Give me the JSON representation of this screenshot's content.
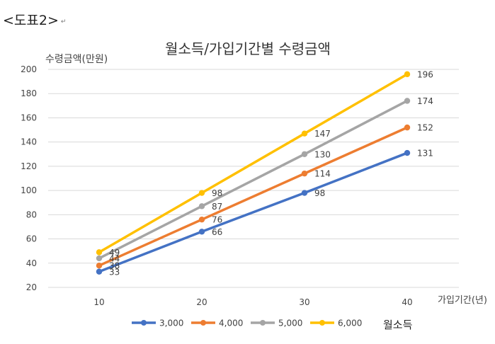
{
  "caption": "<도표2>",
  "caption_mark": "↵",
  "chart_data": {
    "type": "line",
    "title": "월소득/가입기간별 수령금액",
    "ylabel": "수령금액(만원)",
    "xlabel": "가입기간(년)",
    "legend_title": "월소득",
    "x": [
      10,
      20,
      30,
      40
    ],
    "ylim": [
      20,
      200
    ],
    "yticks": [
      20,
      40,
      60,
      80,
      100,
      120,
      140,
      160,
      180,
      200
    ],
    "grid": true,
    "legend": "bottom",
    "series": [
      {
        "name": "3,000",
        "color": "#4472C4",
        "values": [
          33,
          66,
          98,
          131
        ]
      },
      {
        "name": "4,000",
        "color": "#ED7D31",
        "values": [
          38,
          76,
          114,
          152
        ]
      },
      {
        "name": "5,000",
        "color": "#A5A5A5",
        "values": [
          44,
          87,
          130,
          174
        ]
      },
      {
        "name": "6,000",
        "color": "#FFC000",
        "values": [
          49,
          98,
          147,
          196
        ]
      }
    ]
  }
}
